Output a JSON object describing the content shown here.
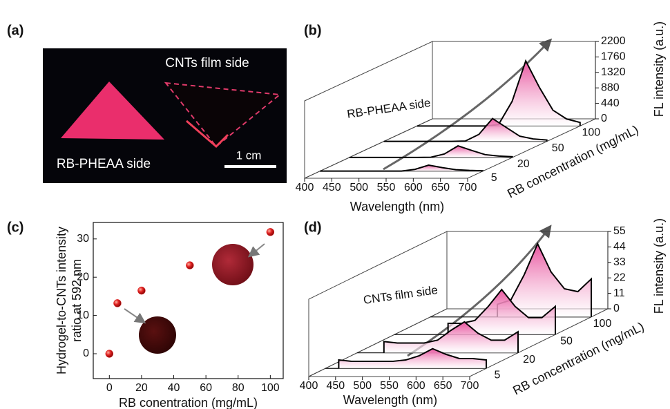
{
  "photo": {
    "panel_label": "(a)",
    "top_label": "CNTs film side",
    "bottom_label": "RB-PHEAA side",
    "scale_bar": "1 cm"
  },
  "chart_data": [
    {
      "type": "waterfall",
      "panel_label": "(b)",
      "annotation": "RB-PHEAA  side",
      "x_label": "Wavelength (nm)",
      "z_label": "FL intensity (a.u.)",
      "depth_label": "RB concentration (mg/mL)",
      "x": [
        400,
        425,
        450,
        475,
        500,
        525,
        550,
        575,
        600,
        625,
        650,
        675,
        700
      ],
      "xlim": [
        400,
        700
      ],
      "xticks": [
        400,
        450,
        500,
        550,
        600,
        650,
        700
      ],
      "zlim": [
        0,
        2200
      ],
      "zticks": [
        0,
        440,
        880,
        1320,
        1760,
        2200
      ],
      "color": "#e8559f",
      "series": [
        {
          "name": "5",
          "values": [
            0,
            0,
            0,
            0,
            0,
            0,
            2,
            50,
            170,
            100,
            40,
            20,
            10
          ]
        },
        {
          "name": "20",
          "values": [
            0,
            0,
            0,
            0,
            0,
            0,
            5,
            100,
            330,
            200,
            80,
            40,
            20
          ]
        },
        {
          "name": "50",
          "values": [
            0,
            0,
            0,
            0,
            0,
            0,
            10,
            200,
            650,
            400,
            150,
            70,
            40
          ]
        },
        {
          "name": "100",
          "values": [
            0,
            0,
            0,
            0,
            0,
            0,
            40,
            700,
            1850,
            1100,
            450,
            200,
            100
          ]
        }
      ]
    },
    {
      "type": "scatter",
      "panel_label": "(c)",
      "x_label": "RB conentration (mg/mL)",
      "y_label": [
        "Hydrogel-to-CNTs intensity",
        "ratio at 592 nm"
      ],
      "x": [
        0,
        5,
        20,
        50,
        100
      ],
      "values": [
        0,
        13.2,
        16.5,
        23.1,
        31.8
      ],
      "xlim": [
        -10,
        108
      ],
      "ylim": [
        -6.5,
        34.3
      ],
      "xticks": [
        0,
        20,
        40,
        60,
        80,
        100
      ],
      "yticks": [
        0,
        10,
        20,
        30
      ],
      "color": "#e02020"
    },
    {
      "type": "waterfall",
      "panel_label": "(d)",
      "annotation": "CNTs film side",
      "x_label": "Wavelength (nm)",
      "z_label": "FL intensity (a.u.)",
      "depth_label": "RB concentration (mg/mL)",
      "x": [
        400,
        425,
        450,
        475,
        500,
        525,
        550,
        575,
        600,
        625,
        650,
        675,
        700
      ],
      "xlim": [
        400,
        700
      ],
      "xticks": [
        400,
        450,
        500,
        550,
        600,
        650,
        700
      ],
      "zlim": [
        0,
        55
      ],
      "zticks": [
        0,
        11,
        22,
        33,
        44,
        55
      ],
      "color": "#e8559f",
      "series": [
        {
          "name": "5",
          "values": [
            null,
            6,
            5,
            5,
            5,
            5,
            6,
            9,
            14,
            10,
            7,
            7,
            6
          ]
        },
        {
          "name": "20",
          "values": [
            null,
            null,
            8,
            7,
            7,
            7,
            9,
            16,
            22,
            14,
            9,
            9,
            15
          ]
        },
        {
          "name": "50",
          "values": [
            null,
            null,
            null,
            null,
            8,
            8,
            10,
            20,
            32,
            20,
            12,
            12,
            20
          ]
        },
        {
          "name": "100",
          "values": [
            null,
            null,
            null,
            null,
            null,
            9,
            12,
            30,
            52,
            32,
            20,
            18,
            27
          ]
        }
      ]
    }
  ]
}
